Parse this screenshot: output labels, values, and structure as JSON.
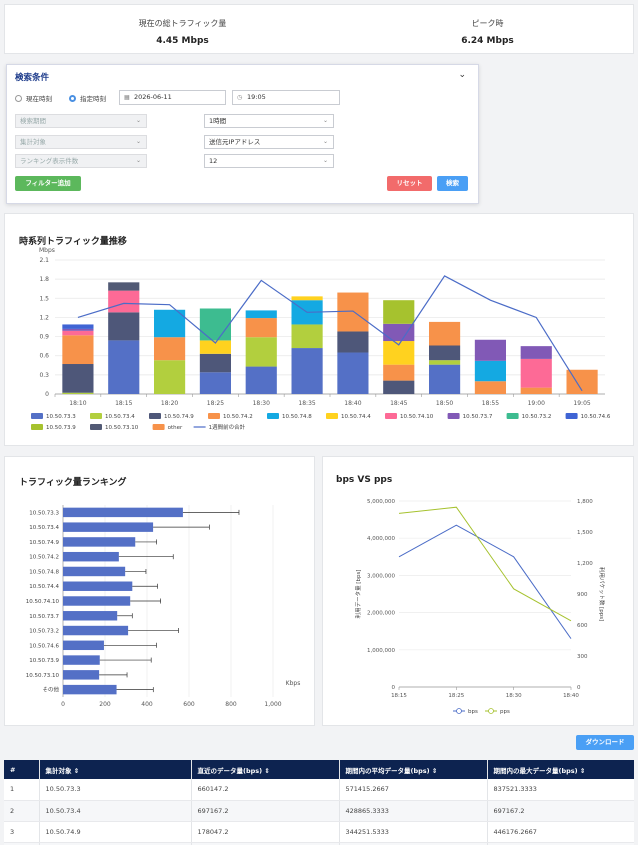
{
  "summary": {
    "current_label": "現在の総トラフィック量",
    "current_value": "4.45 Mbps",
    "peak_label": "ピーク時",
    "peak_value": "6.24 Mbps"
  },
  "search": {
    "title": "検索条件",
    "radio_now": "現在時刻",
    "radio_specified": "指定時刻",
    "date": "2026-06-11",
    "time": "19:05",
    "period_placeholder": "検索期間",
    "target_placeholder": "集計対象",
    "count_placeholder": "ランキング表示件数",
    "period_value": "1時間",
    "target_value": "送信元IPアドレス",
    "count_value": "12",
    "add_filter": "フィルター追加",
    "reset": "リセット",
    "search": "検索",
    "colors": {
      "add_filter": "#5cb85c",
      "reset": "#f26b6b",
      "search": "#4a9ff5"
    }
  },
  "timeseries": {
    "title": "時系列トラフィック量推移",
    "legend_line": "1週間前の合計"
  },
  "ranking": {
    "title": "トラフィック量ランキング"
  },
  "bpspps": {
    "title": "bps VS pps"
  },
  "download_label": "ダウンロード",
  "table": {
    "headers": [
      "#",
      "集計対象",
      "直近のデータ量(bps)",
      "期間内の平均データ量(bps)",
      "期間内の最大データ量(bps)"
    ],
    "rows": [
      [
        "1",
        "10.50.73.3",
        "660147.2",
        "571415.2667",
        "837521.3333"
      ],
      [
        "2",
        "10.50.73.4",
        "697167.2",
        "428865.3333",
        "697167.2"
      ],
      [
        "3",
        "10.50.74.9",
        "178047.2",
        "344251.5333",
        "446176.2667"
      ]
    ]
  },
  "chart_data": [
    {
      "type": "bar",
      "stacked": true,
      "title": "時系列トラフィック量推移",
      "ylabel": "Mbps",
      "ylim": [
        0,
        2.1
      ],
      "yticks": [
        "0",
        "0.3",
        "0.6",
        "0.9",
        "1.2",
        "1.5",
        "1.8",
        "2.1"
      ],
      "categories": [
        "18:10",
        "18:15",
        "18:20",
        "18:25",
        "18:30",
        "18:35",
        "18:40",
        "18:45",
        "18:50",
        "18:55",
        "19:00",
        "19:05"
      ],
      "series": [
        {
          "name": "10.50.73.3",
          "color": "#5470c6",
          "values": [
            0,
            0.84,
            0,
            0.34,
            0.43,
            0.72,
            0.65,
            0,
            0.46,
            0,
            0,
            0
          ]
        },
        {
          "name": "10.50.73.4",
          "color": "#b2cf3e",
          "values": [
            0.02,
            0,
            0.53,
            0,
            0.46,
            0.37,
            0,
            0,
            0.07,
            0,
            0,
            0
          ]
        },
        {
          "name": "10.50.74.9",
          "color": "#4e5779",
          "values": [
            0.45,
            0.44,
            0,
            0.29,
            0,
            0,
            0.33,
            0.21,
            0.23,
            0,
            0,
            0
          ]
        },
        {
          "name": "10.50.74.2",
          "color": "#f7924a",
          "values": [
            0.45,
            0,
            0.36,
            0,
            0.3,
            0,
            0.61,
            0.25,
            0.37,
            0.2,
            0.1,
            0.38
          ]
        },
        {
          "name": "10.50.74.8",
          "color": "#14a9e2",
          "values": [
            0,
            0,
            0.43,
            0,
            0.12,
            0.38,
            0,
            0,
            0,
            0.32,
            0,
            0
          ]
        },
        {
          "name": "10.50.74.4",
          "color": "#ffd21f",
          "values": [
            0,
            0,
            0,
            0.21,
            0,
            0.06,
            0,
            0.37,
            0,
            0,
            0,
            0
          ]
        },
        {
          "name": "10.50.74.10",
          "color": "#fd6a96",
          "values": [
            0.07,
            0.34,
            0,
            0,
            0,
            0,
            0,
            0,
            0,
            0,
            0.45,
            0
          ]
        },
        {
          "name": "10.50.73.7",
          "color": "#8159b6",
          "values": [
            0.03,
            0,
            0,
            0,
            0,
            0,
            0,
            0.27,
            0,
            0.33,
            0.2,
            0
          ]
        },
        {
          "name": "10.50.73.2",
          "color": "#3dbc90",
          "values": [
            0,
            0,
            0,
            0.5,
            0,
            0,
            0,
            0,
            0,
            0,
            0,
            0
          ]
        },
        {
          "name": "10.50.74.6",
          "color": "#3f64d4",
          "values": [
            0.07,
            0,
            0,
            0,
            0,
            0,
            0,
            0,
            0,
            0,
            0,
            0
          ]
        },
        {
          "name": "10.50.73.9",
          "color": "#a6c22e",
          "values": [
            0,
            0,
            0,
            0,
            0,
            0,
            0,
            0.37,
            0,
            0,
            0,
            0
          ]
        },
        {
          "name": "10.50.73.10",
          "color": "#525a75",
          "values": [
            0,
            0.13,
            0,
            0,
            0,
            0,
            0,
            0,
            0,
            0,
            0,
            0
          ]
        },
        {
          "name": "other",
          "color": "#f7924a",
          "values": [
            0,
            0,
            0,
            0,
            0,
            0,
            0,
            0,
            0,
            0,
            0,
            0
          ]
        }
      ],
      "line": {
        "name": "1週間前の合計",
        "color": "#4b6cc7",
        "values": [
          1.2,
          1.42,
          1.4,
          0.8,
          1.78,
          1.28,
          1.3,
          0.77,
          1.85,
          1.47,
          1.2,
          0.05
        ]
      }
    },
    {
      "type": "bar",
      "orientation": "horizontal",
      "title": "トラフィック量ランキング",
      "xlabel": "Kbps",
      "xlim": [
        0,
        1000
      ],
      "xticks": [
        "0",
        "200",
        "400",
        "600",
        "800",
        "1,000"
      ],
      "categories": [
        "10.50.73.3",
        "10.50.73.4",
        "10.50.74.9",
        "10.50.74.2",
        "10.50.74.8",
        "10.50.74.4",
        "10.50.74.10",
        "10.50.73.7",
        "10.50.73.2",
        "10.50.74.6",
        "10.50.73.9",
        "10.50.73.10",
        "その他"
      ],
      "values": [
        571,
        429,
        344,
        266,
        296,
        330,
        320,
        258,
        310,
        195,
        175,
        172,
        255
      ],
      "error_max": [
        838,
        697,
        446,
        525,
        395,
        450,
        465,
        330,
        550,
        445,
        420,
        305,
        430
      ],
      "color": "#5470c6"
    },
    {
      "type": "line",
      "title": "bps VS pps",
      "categories": [
        "18:15",
        "18:25",
        "18:30",
        "18:40"
      ],
      "y_left_label": "利用データ量 [bps]",
      "y_right_label": "利用パケット数 [pps]",
      "y_left_lim": [
        0,
        5000000
      ],
      "y_right_lim": [
        0,
        1800
      ],
      "y_left_ticks": [
        "0",
        "1,000,000",
        "2,000,000",
        "3,000,000",
        "4,000,000",
        "5,000,000"
      ],
      "y_right_ticks": [
        "0",
        "300",
        "600",
        "900",
        "1,200",
        "1,500",
        "1,800"
      ],
      "series": [
        {
          "name": "bps",
          "axis": "left",
          "color": "#4b6cc7",
          "values": [
            3500000,
            4350000,
            3500000,
            1300000
          ]
        },
        {
          "name": "pps",
          "axis": "right",
          "color": "#a6c22e",
          "values": [
            1680,
            1740,
            950,
            640
          ]
        }
      ]
    }
  ]
}
